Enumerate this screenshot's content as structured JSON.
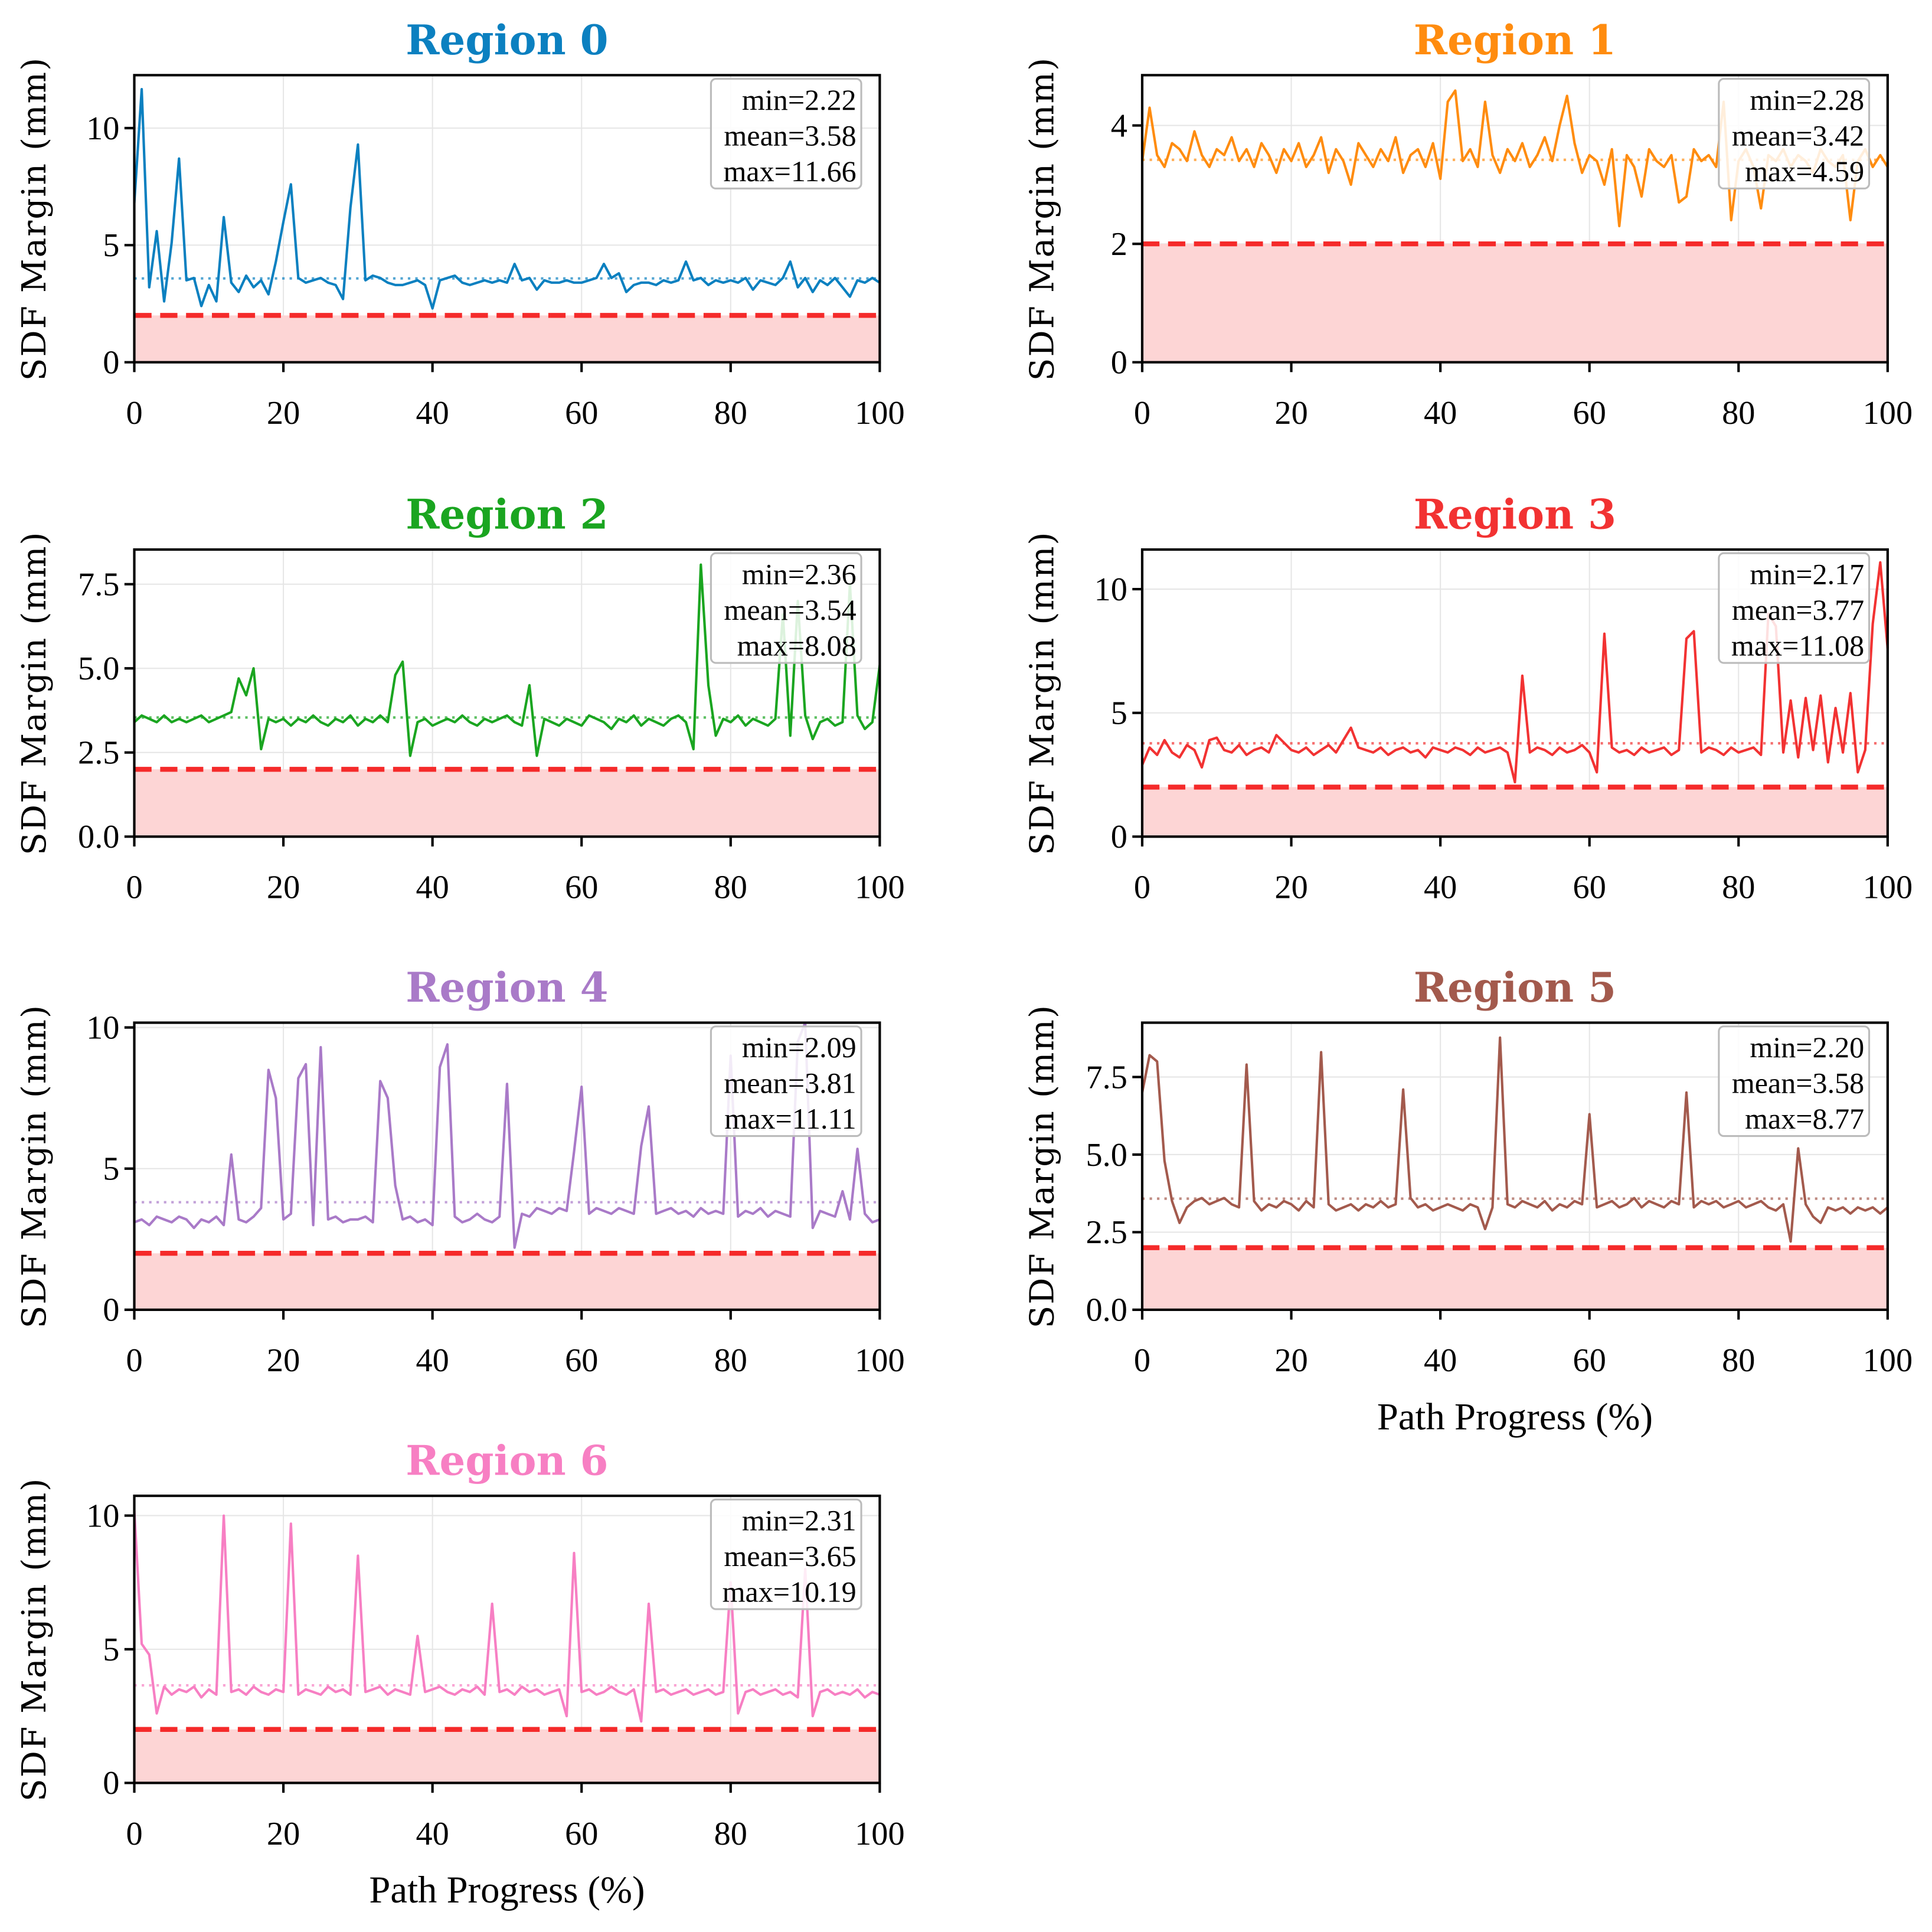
{
  "chart_data": [
    {
      "type": "line",
      "title": "Region 0",
      "color": "#0b80c0",
      "xlabel": "",
      "ylabel": "SDF Margin (mm)",
      "xlim": [
        0,
        100
      ],
      "ylim": [
        0,
        12.26
      ],
      "xticks": [
        "0",
        "20",
        "40",
        "60",
        "80",
        "100"
      ],
      "yticks": [
        {
          "v": 0,
          "l": "0"
        },
        {
          "v": 5,
          "l": "5"
        },
        {
          "v": 10,
          "l": "10"
        }
      ],
      "threshold": 2.0,
      "mean": 3.58,
      "stats": [
        "min=2.22",
        "mean=3.58",
        "max=11.66"
      ],
      "y": [
        6.8,
        11.66,
        3.2,
        5.6,
        2.6,
        5.1,
        8.7,
        3.5,
        3.6,
        2.4,
        3.3,
        2.6,
        6.2,
        3.4,
        3.0,
        3.7,
        3.2,
        3.5,
        2.9,
        4.3,
        6.0,
        7.6,
        3.6,
        3.4,
        3.5,
        3.6,
        3.4,
        3.3,
        2.7,
        6.6,
        9.3,
        3.5,
        3.7,
        3.6,
        3.4,
        3.3,
        3.3,
        3.4,
        3.5,
        3.3,
        2.3,
        3.5,
        3.6,
        3.7,
        3.4,
        3.3,
        3.4,
        3.5,
        3.4,
        3.5,
        3.4,
        4.2,
        3.5,
        3.6,
        3.1,
        3.5,
        3.4,
        3.4,
        3.5,
        3.4,
        3.4,
        3.5,
        3.6,
        4.2,
        3.6,
        3.8,
        3.0,
        3.3,
        3.4,
        3.4,
        3.3,
        3.5,
        3.4,
        3.5,
        4.3,
        3.5,
        3.6,
        3.3,
        3.5,
        3.4,
        3.5,
        3.4,
        3.6,
        3.1,
        3.5,
        3.4,
        3.3,
        3.6,
        4.3,
        3.2,
        3.6,
        3.0,
        3.5,
        3.3,
        3.6,
        3.2,
        2.8,
        3.5,
        3.4,
        3.6,
        3.4
      ]
    },
    {
      "type": "line",
      "title": "Region 1",
      "color": "#ff8c0f",
      "xlabel": "",
      "ylabel": "SDF Margin (mm)",
      "xlim": [
        0,
        100
      ],
      "ylim": [
        0,
        4.85
      ],
      "xticks": [
        "0",
        "20",
        "40",
        "60",
        "80",
        "100"
      ],
      "yticks": [
        {
          "v": 0,
          "l": "0"
        },
        {
          "v": 2,
          "l": "2"
        },
        {
          "v": 4,
          "l": "4"
        }
      ],
      "threshold": 2.0,
      "mean": 3.42,
      "stats": [
        "min=2.28",
        "mean=3.42",
        "max=4.59"
      ],
      "y": [
        3.4,
        4.3,
        3.5,
        3.3,
        3.7,
        3.6,
        3.4,
        3.9,
        3.5,
        3.3,
        3.6,
        3.5,
        3.8,
        3.4,
        3.6,
        3.3,
        3.7,
        3.5,
        3.2,
        3.6,
        3.4,
        3.7,
        3.3,
        3.5,
        3.8,
        3.2,
        3.6,
        3.4,
        3.0,
        3.7,
        3.5,
        3.3,
        3.6,
        3.4,
        3.8,
        3.2,
        3.5,
        3.6,
        3.3,
        3.7,
        3.1,
        4.4,
        4.59,
        3.4,
        3.6,
        3.3,
        4.4,
        3.5,
        3.2,
        3.6,
        3.4,
        3.7,
        3.3,
        3.5,
        3.8,
        3.4,
        4.0,
        4.5,
        3.7,
        3.2,
        3.5,
        3.4,
        3.0,
        3.6,
        2.3,
        3.5,
        3.3,
        2.8,
        3.6,
        3.4,
        3.3,
        3.5,
        2.7,
        2.8,
        3.6,
        3.4,
        3.5,
        3.3,
        4.4,
        2.4,
        3.4,
        3.6,
        3.3,
        2.6,
        3.5,
        3.4,
        3.6,
        3.3,
        3.5,
        3.4,
        3.2,
        3.6,
        3.4,
        3.3,
        3.5,
        2.4,
        3.4,
        3.6,
        3.3,
        3.5,
        3.3
      ]
    },
    {
      "type": "line",
      "title": "Region 2",
      "color": "#1aa520",
      "xlabel": "",
      "ylabel": "SDF Margin (mm)",
      "xlim": [
        0,
        100
      ],
      "ylim": [
        0,
        8.53
      ],
      "xticks": [
        "0",
        "20",
        "40",
        "60",
        "80",
        "100"
      ],
      "yticks": [
        {
          "v": 0,
          "l": "0.0"
        },
        {
          "v": 2.5,
          "l": "2.5"
        },
        {
          "v": 5,
          "l": "5.0"
        },
        {
          "v": 7.5,
          "l": "7.5"
        }
      ],
      "threshold": 2.0,
      "mean": 3.54,
      "stats": [
        "min=2.36",
        "mean=3.54",
        "max=8.08"
      ],
      "y": [
        3.4,
        3.6,
        3.5,
        3.4,
        3.6,
        3.4,
        3.5,
        3.4,
        3.5,
        3.6,
        3.4,
        3.5,
        3.6,
        3.7,
        4.7,
        4.2,
        5.0,
        2.6,
        3.5,
        3.4,
        3.5,
        3.3,
        3.5,
        3.4,
        3.6,
        3.4,
        3.3,
        3.5,
        3.4,
        3.6,
        3.3,
        3.5,
        3.4,
        3.6,
        3.4,
        4.8,
        5.2,
        2.4,
        3.4,
        3.5,
        3.3,
        3.4,
        3.5,
        3.4,
        3.6,
        3.4,
        3.3,
        3.5,
        3.4,
        3.5,
        3.6,
        3.4,
        3.3,
        4.5,
        2.4,
        3.5,
        3.4,
        3.3,
        3.5,
        3.4,
        3.3,
        3.6,
        3.5,
        3.4,
        3.2,
        3.5,
        3.4,
        3.6,
        3.3,
        3.5,
        3.4,
        3.3,
        3.5,
        3.6,
        3.4,
        2.6,
        8.08,
        4.5,
        3.0,
        3.5,
        3.4,
        3.6,
        3.3,
        3.5,
        3.4,
        3.3,
        3.5,
        6.6,
        3.0,
        7.0,
        3.6,
        2.9,
        3.4,
        3.5,
        3.3,
        3.4,
        7.5,
        3.6,
        3.2,
        3.4,
        5.1
      ]
    },
    {
      "type": "line",
      "title": "Region 3",
      "color": "#f23232",
      "xlabel": "",
      "ylabel": "SDF Margin (mm)",
      "xlim": [
        0,
        100
      ],
      "ylim": [
        0,
        11.6
      ],
      "xticks": [
        "0",
        "20",
        "40",
        "60",
        "80",
        "100"
      ],
      "yticks": [
        {
          "v": 0,
          "l": "0"
        },
        {
          "v": 5,
          "l": "5"
        },
        {
          "v": 10,
          "l": "10"
        }
      ],
      "threshold": 2.0,
      "mean": 3.77,
      "stats": [
        "min=2.17",
        "mean=3.77",
        "max=11.08"
      ],
      "y": [
        2.9,
        3.6,
        3.3,
        3.9,
        3.4,
        3.2,
        3.7,
        3.5,
        2.8,
        3.9,
        4.0,
        3.5,
        3.4,
        3.7,
        3.3,
        3.5,
        3.6,
        3.4,
        4.1,
        3.8,
        3.5,
        3.4,
        3.6,
        3.3,
        3.5,
        3.7,
        3.4,
        3.9,
        4.4,
        3.6,
        3.5,
        3.4,
        3.6,
        3.3,
        3.5,
        3.6,
        3.4,
        3.5,
        3.2,
        3.6,
        3.5,
        3.4,
        3.6,
        3.5,
        3.3,
        3.6,
        3.4,
        3.5,
        3.6,
        3.4,
        2.2,
        6.5,
        3.4,
        3.6,
        3.5,
        3.3,
        3.6,
        3.4,
        3.5,
        3.7,
        3.4,
        2.6,
        8.2,
        3.6,
        3.4,
        3.5,
        3.3,
        3.6,
        3.4,
        3.5,
        3.6,
        3.3,
        3.5,
        8.0,
        8.3,
        3.4,
        3.6,
        3.5,
        3.3,
        3.6,
        3.4,
        3.5,
        3.6,
        3.3,
        9.0,
        8.5,
        3.4,
        5.5,
        3.2,
        5.6,
        3.5,
        5.7,
        3.0,
        5.2,
        3.4,
        5.8,
        2.6,
        3.5,
        8.6,
        11.08,
        7.6
      ]
    },
    {
      "type": "line",
      "title": "Region 4",
      "color": "#a97ac8",
      "xlabel": "",
      "ylabel": "SDF Margin (mm)",
      "xlim": [
        0,
        100
      ],
      "ylim": [
        0,
        10.17
      ],
      "xticks": [
        "0",
        "20",
        "40",
        "60",
        "80",
        "100"
      ],
      "yticks": [
        {
          "v": 0,
          "l": "0"
        },
        {
          "v": 5,
          "l": "5"
        },
        {
          "v": 10,
          "l": "10"
        }
      ],
      "threshold": 2.0,
      "mean": 3.81,
      "stats": [
        "min=2.09",
        "mean=3.81",
        "max=11.11"
      ],
      "y": [
        3.1,
        3.2,
        3.0,
        3.3,
        3.2,
        3.1,
        3.3,
        3.2,
        2.9,
        3.2,
        3.1,
        3.3,
        3.0,
        5.5,
        3.2,
        3.1,
        3.3,
        3.6,
        8.5,
        7.5,
        3.2,
        3.4,
        8.2,
        8.7,
        3.0,
        9.3,
        3.2,
        3.3,
        3.1,
        3.2,
        3.2,
        3.3,
        3.1,
        8.1,
        7.5,
        4.4,
        3.2,
        3.3,
        3.1,
        3.2,
        3.0,
        8.6,
        9.4,
        3.3,
        3.1,
        3.2,
        3.4,
        3.2,
        3.1,
        3.3,
        8.0,
        2.2,
        3.4,
        3.3,
        3.6,
        3.5,
        3.4,
        3.6,
        3.5,
        5.6,
        7.9,
        3.4,
        3.6,
        3.5,
        3.4,
        3.6,
        3.5,
        3.4,
        5.8,
        7.2,
        3.4,
        3.5,
        3.6,
        3.4,
        3.5,
        3.3,
        3.6,
        3.4,
        3.5,
        3.4,
        9.0,
        3.3,
        3.5,
        3.4,
        3.6,
        3.3,
        3.5,
        3.4,
        3.3,
        9.5,
        11.11,
        2.9,
        3.5,
        3.4,
        3.3,
        4.2,
        3.2,
        5.7,
        3.4,
        3.1,
        3.2
      ]
    },
    {
      "type": "line",
      "title": "Region 5",
      "color": "#a35a4d",
      "xlabel": "Path Progress (%)",
      "ylabel": "SDF Margin (mm)",
      "xlim": [
        0,
        100
      ],
      "ylim": [
        0,
        9.25
      ],
      "xticks": [
        "0",
        "20",
        "40",
        "60",
        "80",
        "100"
      ],
      "yticks": [
        {
          "v": 0,
          "l": "0.0"
        },
        {
          "v": 2.5,
          "l": "2.5"
        },
        {
          "v": 5,
          "l": "5.0"
        },
        {
          "v": 7.5,
          "l": "7.5"
        }
      ],
      "threshold": 2.0,
      "mean": 3.58,
      "stats": [
        "min=2.20",
        "mean=3.58",
        "max=8.77"
      ],
      "y": [
        7.0,
        8.2,
        8.0,
        4.8,
        3.5,
        2.8,
        3.3,
        3.5,
        3.6,
        3.4,
        3.5,
        3.6,
        3.4,
        3.3,
        7.9,
        3.5,
        3.2,
        3.4,
        3.3,
        3.5,
        3.4,
        3.2,
        3.5,
        3.3,
        8.3,
        3.4,
        3.2,
        3.3,
        3.4,
        3.2,
        3.4,
        3.3,
        3.5,
        3.3,
        3.4,
        7.1,
        3.6,
        3.3,
        3.4,
        3.2,
        3.3,
        3.4,
        3.3,
        3.2,
        3.4,
        3.3,
        2.6,
        3.3,
        8.77,
        3.4,
        3.3,
        3.5,
        3.4,
        3.3,
        3.5,
        3.2,
        3.4,
        3.3,
        3.5,
        3.4,
        6.3,
        3.3,
        3.4,
        3.5,
        3.3,
        3.4,
        3.6,
        3.3,
        3.5,
        3.4,
        3.3,
        3.5,
        3.4,
        7.0,
        3.3,
        3.5,
        3.4,
        3.5,
        3.3,
        3.4,
        3.5,
        3.3,
        3.4,
        3.5,
        3.3,
        3.2,
        3.4,
        2.2,
        5.2,
        3.4,
        3.0,
        2.8,
        3.3,
        3.2,
        3.3,
        3.1,
        3.3,
        3.2,
        3.3,
        3.1,
        3.3
      ]
    },
    {
      "type": "line",
      "title": "Region 6",
      "color": "#f77fc3",
      "xlabel": "Path Progress (%)",
      "ylabel": "SDF Margin (mm)",
      "xlim": [
        0,
        100
      ],
      "ylim": [
        0,
        10.74
      ],
      "xticks": [
        "0",
        "20",
        "40",
        "60",
        "80",
        "100"
      ],
      "yticks": [
        {
          "v": 0,
          "l": "0"
        },
        {
          "v": 5,
          "l": "5"
        },
        {
          "v": 10,
          "l": "10"
        }
      ],
      "threshold": 2.0,
      "mean": 3.65,
      "stats": [
        "min=2.31",
        "mean=3.65",
        "max=10.19"
      ],
      "y": [
        10.19,
        5.2,
        4.8,
        2.6,
        3.6,
        3.3,
        3.5,
        3.4,
        3.6,
        3.2,
        3.5,
        3.3,
        10.0,
        3.4,
        3.5,
        3.3,
        3.6,
        3.4,
        3.3,
        3.5,
        3.4,
        9.7,
        3.3,
        3.5,
        3.4,
        3.3,
        3.6,
        3.4,
        3.5,
        3.3,
        8.5,
        3.4,
        3.5,
        3.6,
        3.3,
        3.5,
        3.4,
        3.3,
        5.5,
        3.4,
        3.5,
        3.6,
        3.4,
        3.3,
        3.5,
        3.4,
        3.6,
        3.3,
        6.7,
        3.4,
        3.5,
        3.3,
        3.6,
        3.4,
        3.5,
        3.3,
        3.4,
        3.5,
        2.5,
        8.6,
        3.4,
        3.5,
        3.3,
        3.4,
        3.6,
        3.4,
        3.3,
        3.5,
        2.3,
        6.7,
        3.4,
        3.5,
        3.3,
        3.4,
        3.5,
        3.3,
        3.4,
        3.5,
        3.3,
        3.4,
        7.5,
        2.6,
        3.4,
        3.5,
        3.3,
        3.4,
        3.5,
        3.3,
        3.4,
        3.2,
        8.0,
        2.5,
        3.4,
        3.5,
        3.3,
        3.4,
        3.3,
        3.5,
        3.2,
        3.4,
        3.3
      ]
    }
  ]
}
